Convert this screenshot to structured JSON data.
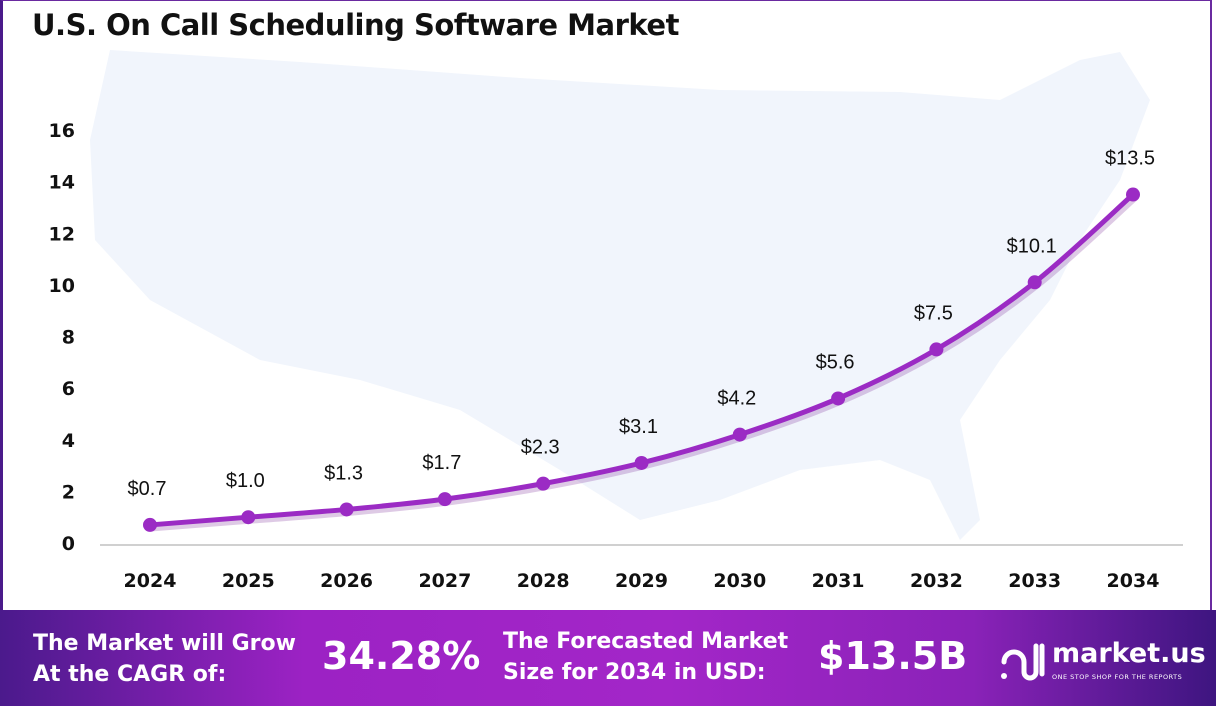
{
  "chart_data": {
    "type": "line",
    "title": "U.S. On Call Scheduling Software Market",
    "categories": [
      "2024",
      "2025",
      "2026",
      "2027",
      "2028",
      "2029",
      "2030",
      "2031",
      "2032",
      "2033",
      "2034"
    ],
    "values": [
      0.7,
      1.0,
      1.3,
      1.7,
      2.3,
      3.1,
      4.2,
      5.6,
      7.5,
      10.1,
      13.5
    ],
    "data_labels": [
      "$0.7",
      "$1.0",
      "$1.3",
      "$1.7",
      "$2.3",
      "$3.1",
      "$4.2",
      "$5.6",
      "$7.5",
      "$10.1",
      "$13.5"
    ],
    "yticks": [
      "0",
      "2",
      "4",
      "6",
      "8",
      "10",
      "12",
      "14",
      "16"
    ],
    "ylim": [
      0,
      16
    ],
    "xlabel": "",
    "ylabel": "",
    "grid": false,
    "line_color": "#9b2bc4"
  },
  "footer": {
    "cagr_label_1": "The Market will Grow",
    "cagr_label_2": "At the CAGR of:",
    "cagr_value": "34.28%",
    "forecast_label_1": "The Forecasted Market",
    "forecast_label_2": "Size for 2034 in USD:",
    "forecast_value": "$13.5B",
    "logo_name": "market.us",
    "logo_tagline": "ONE STOP SHOP FOR THE REPORTS"
  }
}
